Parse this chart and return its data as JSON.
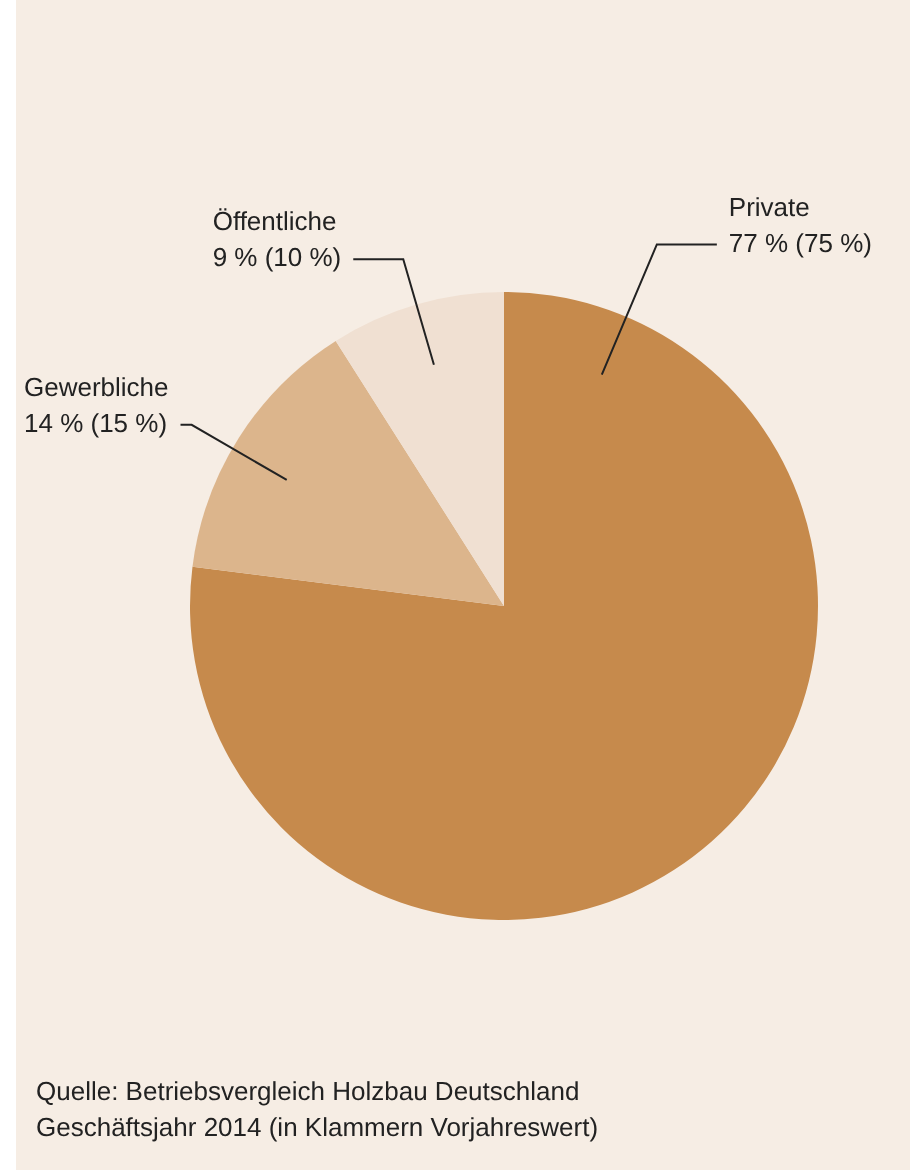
{
  "chart_data": {
    "type": "pie",
    "categories": [
      "Private",
      "Gewerbliche",
      "Öffentliche"
    ],
    "values": [
      77,
      14,
      9
    ],
    "colors": [
      "#c68a4c",
      "#dcb58c",
      "#f0e0d2"
    ],
    "value_labels": [
      "77 % (75 %)",
      "14 % (15 %)",
      "9 % (10 %)"
    ],
    "legend": false,
    "annotations": [
      "Quelle: Betriebsvergleich Holzbau Deutschland\nGeschäftsjahr 2014 (in Klammern Vorjahreswert)"
    ]
  }
}
